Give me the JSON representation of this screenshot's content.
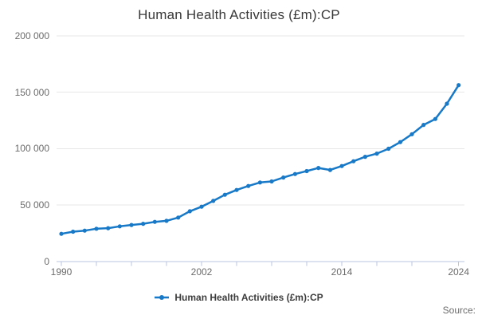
{
  "chart_data": {
    "type": "line",
    "title": "Human Health Activities (£m):CP",
    "x": [
      1990,
      1991,
      1992,
      1993,
      1994,
      1995,
      1996,
      1997,
      1998,
      1999,
      2000,
      2001,
      2002,
      2003,
      2004,
      2005,
      2006,
      2007,
      2008,
      2009,
      2010,
      2011,
      2012,
      2013,
      2014,
      2015,
      2016,
      2017,
      2018,
      2019,
      2020,
      2021,
      2022,
      2023,
      2024
    ],
    "series": [
      {
        "name": "Human Health Activities (£m):CP",
        "values": [
          24500,
          26400,
          27300,
          29000,
          29500,
          31100,
          32300,
          33400,
          35100,
          36000,
          38900,
          44500,
          48500,
          53700,
          59100,
          63400,
          66900,
          70000,
          70900,
          74400,
          77500,
          80100,
          82900,
          81100,
          84600,
          88800,
          92800,
          95600,
          99900,
          105800,
          112800,
          121100,
          126300,
          139900,
          156400
        ]
      }
    ],
    "xlim": [
      1990,
      2024
    ],
    "ylim": [
      0,
      200000
    ],
    "grid": true,
    "legend_position": "bottom-center",
    "y_ticks": [
      {
        "value": 0,
        "label": "0"
      },
      {
        "value": 50000,
        "label": "50 000"
      },
      {
        "value": 100000,
        "label": "100 000"
      },
      {
        "value": 150000,
        "label": "150 000"
      },
      {
        "value": 200000,
        "label": "200 000"
      }
    ],
    "x_ticks_labeled": [
      {
        "year": 1990,
        "label": "1990"
      },
      {
        "year": 2002,
        "label": "2002"
      },
      {
        "year": 2014,
        "label": "2014"
      },
      {
        "year": 2024,
        "label": "2024"
      }
    ],
    "x_minor_tick_years": [
      1990,
      1993,
      1996,
      1999,
      2002,
      2005,
      2008,
      2011,
      2014,
      2017,
      2020,
      2024
    ]
  },
  "footer": {
    "source_label": "Source:"
  },
  "colors": {
    "line": "#1779c7",
    "grid": "#e7e7e7",
    "axis": "#b8c4e2",
    "tick_text": "#6b6b6b",
    "title_text": "#383838",
    "legend_text": "#3d3d3d"
  }
}
